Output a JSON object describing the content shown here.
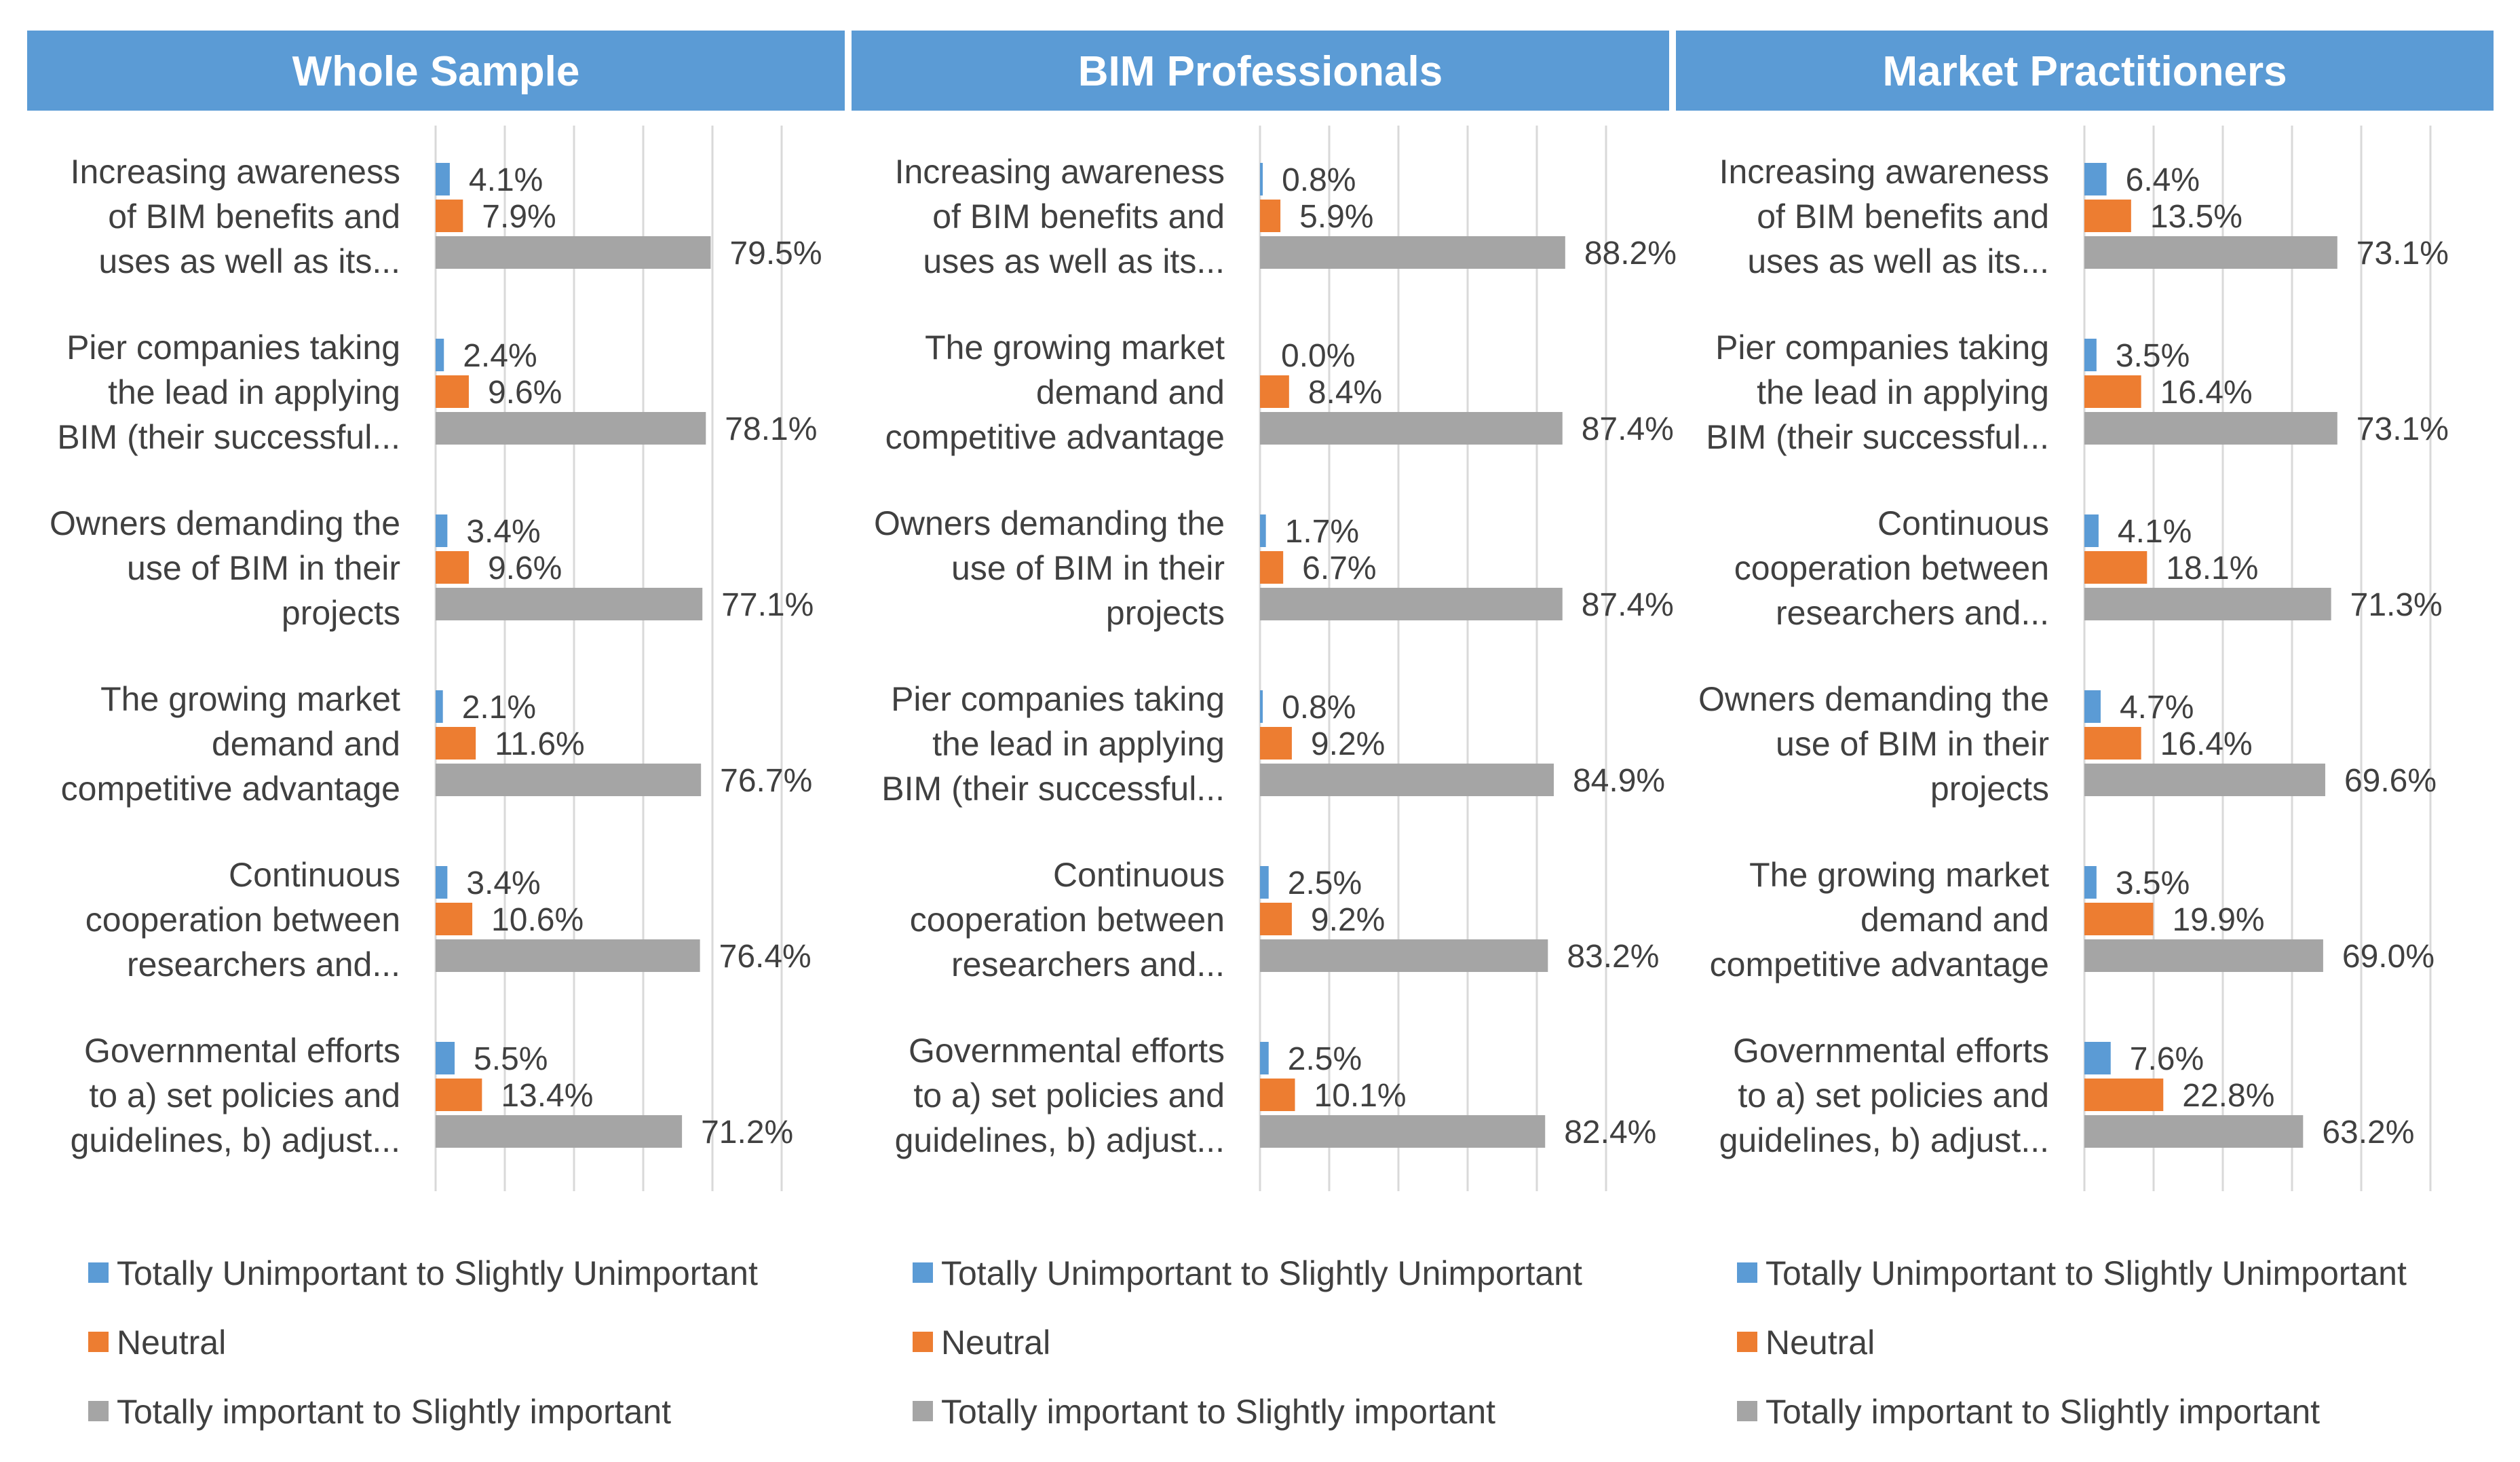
{
  "colors": {
    "header_bg": "#5B9BD5",
    "header_text": "#ffffff",
    "unimportant": "#5B9BD5",
    "neutral": "#ED7D31",
    "important": "#A5A5A5",
    "grid": "#D9D9D9",
    "text": "#404040"
  },
  "legend": {
    "items": [
      "Totally Unimportant to Slightly Unimportant",
      "Neutral",
      "Totally important to Slightly important"
    ]
  },
  "chart_data": [
    {
      "type": "bar",
      "orientation": "horizontal",
      "title": "Whole Sample",
      "xlim": [
        0,
        100
      ],
      "grid": true,
      "value_suffix": "%",
      "categories": [
        [
          "Increasing awareness",
          "of BIM benefits and",
          "uses as well as its..."
        ],
        [
          "Pier companies taking",
          "the lead in applying",
          "BIM (their successful..."
        ],
        [
          "Owners demanding the",
          "use of BIM in their",
          "projects"
        ],
        [
          "The growing market",
          "demand and",
          "competitive advantage"
        ],
        [
          "Continuous",
          "cooperation between",
          "researchers and..."
        ],
        [
          "Governmental efforts",
          "to a) set policies and",
          "guidelines, b) adjust..."
        ]
      ],
      "series": [
        {
          "name": "Totally Unimportant to Slightly Unimportant",
          "values": [
            4.1,
            2.4,
            3.4,
            2.1,
            3.4,
            5.5
          ]
        },
        {
          "name": "Neutral",
          "values": [
            7.9,
            9.6,
            9.6,
            11.6,
            10.6,
            13.4
          ]
        },
        {
          "name": "Totally important to Slightly important",
          "values": [
            79.5,
            78.1,
            77.1,
            76.7,
            76.4,
            71.2
          ]
        }
      ]
    },
    {
      "type": "bar",
      "orientation": "horizontal",
      "title": "BIM Professionals",
      "xlim": [
        0,
        100
      ],
      "grid": true,
      "value_suffix": "%",
      "categories": [
        [
          "Increasing awareness",
          "of BIM benefits and",
          "uses as well as its..."
        ],
        [
          "The growing market",
          "demand and",
          "competitive advantage"
        ],
        [
          "Owners demanding the",
          "use of BIM in their",
          "projects"
        ],
        [
          "Pier companies taking",
          "the lead in applying",
          "BIM (their successful..."
        ],
        [
          "Continuous",
          "cooperation between",
          "researchers and..."
        ],
        [
          "Governmental efforts",
          "to a) set policies and",
          "guidelines, b) adjust..."
        ]
      ],
      "series": [
        {
          "name": "Totally Unimportant to Slightly Unimportant",
          "values": [
            0.8,
            0.0,
            1.7,
            0.8,
            2.5,
            2.5
          ]
        },
        {
          "name": "Neutral",
          "values": [
            5.9,
            8.4,
            6.7,
            9.2,
            9.2,
            10.1
          ]
        },
        {
          "name": "Totally important to Slightly important",
          "values": [
            88.2,
            87.4,
            87.4,
            84.9,
            83.2,
            82.4
          ]
        }
      ]
    },
    {
      "type": "bar",
      "orientation": "horizontal",
      "title": "Market Practitioners",
      "xlim": [
        0,
        100
      ],
      "grid": true,
      "value_suffix": "%",
      "categories": [
        [
          "Increasing awareness",
          "of BIM benefits and",
          "uses as well as its..."
        ],
        [
          "Pier companies taking",
          "the lead in applying",
          "BIM (their successful..."
        ],
        [
          "Continuous",
          "cooperation between",
          "researchers and..."
        ],
        [
          "Owners demanding the",
          "use of BIM in their",
          "projects"
        ],
        [
          "The growing market",
          "demand and",
          "competitive advantage"
        ],
        [
          "Governmental efforts",
          "to a) set policies and",
          "guidelines, b) adjust..."
        ]
      ],
      "series": [
        {
          "name": "Totally Unimportant to Slightly Unimportant",
          "values": [
            6.4,
            3.5,
            4.1,
            4.7,
            3.5,
            7.6
          ]
        },
        {
          "name": "Neutral",
          "values": [
            13.5,
            16.4,
            18.1,
            16.4,
            19.9,
            22.8
          ]
        },
        {
          "name": "Totally important to Slightly important",
          "values": [
            73.1,
            73.1,
            71.3,
            69.6,
            69.0,
            63.2
          ]
        }
      ]
    }
  ]
}
